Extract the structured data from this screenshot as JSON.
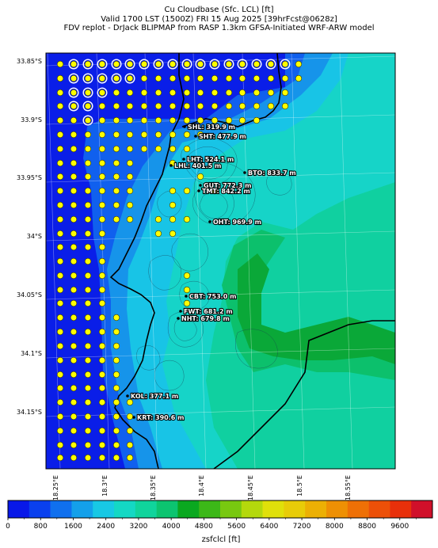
{
  "title": {
    "line1": "Cu Cloudbase (Sfc. LCL) [ft]",
    "line2": "Valid 1700 LST (1500Z) FRI 15 Aug 2025 [39hrFcst@0628z]",
    "line3": "FDV replot - DrJack BLIPMAP from RASP 1.3km GFSA-Initiated WRF-ARW model"
  },
  "lat_labels": [
    "33.85°S",
    "33.9°S",
    "33.95°S",
    "34°S",
    "34.05°S",
    "34.1°S",
    "34.15°S"
  ],
  "lon_labels": [
    "18.25°E",
    "18.3°E",
    "18.35°E",
    "18.4°E",
    "18.45°E",
    "18.5°E",
    "18.55°E"
  ],
  "sites": [
    {
      "name": "SHL",
      "value": "319.9 m"
    },
    {
      "name": "SHT",
      "value": "477.9 m"
    },
    {
      "name": "LHT",
      "value": "524.1 m"
    },
    {
      "name": "LHL",
      "value": "401.5 m"
    },
    {
      "name": "BTO",
      "value": "833.7 m"
    },
    {
      "name": "GUT",
      "value": "772.3 m"
    },
    {
      "name": "TMT",
      "value": "842.2 m"
    },
    {
      "name": "OHT",
      "value": "969.9 m"
    },
    {
      "name": "CBT",
      "value": "753.0 m"
    },
    {
      "name": "FWT",
      "value": "681.2 m"
    },
    {
      "name": "NHT",
      "value": "679.8 m"
    },
    {
      "name": "KOL",
      "value": "377.1 m"
    },
    {
      "name": "KRT",
      "value": "390.6 m"
    }
  ],
  "colorbar": {
    "label": "zsfclcl [ft]",
    "ticks": [
      "0",
      "800",
      "1600",
      "2400",
      "3200",
      "4000",
      "4800",
      "5600",
      "6400",
      "7200",
      "8000",
      "8800",
      "9600"
    ],
    "colors": [
      "#0818e8",
      "#0a40ee",
      "#1070ee",
      "#14a0ea",
      "#18c8e4",
      "#14d8c4",
      "#10d49c",
      "#0cc470",
      "#0aa820",
      "#3cb818",
      "#78c810",
      "#b4d80c",
      "#e0e00a",
      "#e8cc08",
      "#ecb004",
      "#ee9004",
      "#ee7006",
      "#ec5008",
      "#e8300a",
      "#d0102a"
    ]
  },
  "field_colors": {
    "sea": "#0a1ee8",
    "shallow": "#1060ee",
    "mid": "#1694ea",
    "coast": "#18c4e6",
    "land1": "#16d4c8",
    "land2": "#10d0a0",
    "land3": "#0cc06c",
    "high": "#0aa838"
  }
}
